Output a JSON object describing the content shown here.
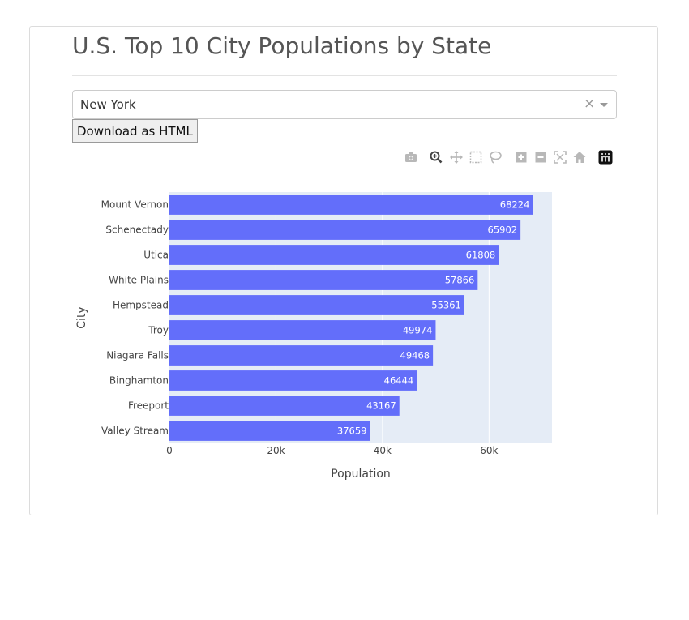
{
  "page": {
    "title": "U.S. Top 10 City Populations by State"
  },
  "dropdown": {
    "selected": "New York",
    "clear_symbol": "×"
  },
  "download_button": {
    "label": "Download as HTML"
  },
  "modebar": {
    "icons": [
      "camera-icon",
      "zoom-icon",
      "pan-icon",
      "box-select-icon",
      "lasso-select-icon",
      "zoom-in-icon",
      "zoom-out-icon",
      "autoscale-icon",
      "reset-axes-icon",
      "plotly-logo-icon"
    ]
  },
  "colors": {
    "bar": "#636efa",
    "plot_bg": "#e5ecf6",
    "grid": "#ffffff"
  },
  "chart_data": {
    "type": "bar",
    "orientation": "horizontal",
    "categories": [
      "Mount Vernon",
      "Schenectady",
      "Utica",
      "White Plains",
      "Hempstead",
      "Troy",
      "Niagara Falls",
      "Binghamton",
      "Freeport",
      "Valley Stream"
    ],
    "values": [
      68224,
      65902,
      61808,
      57866,
      55361,
      49974,
      49468,
      46444,
      43167,
      37659
    ],
    "xlabel": "Population",
    "ylabel": "City",
    "xlim": [
      0,
      71815
    ],
    "xticks": [
      0,
      20000,
      40000,
      60000
    ],
    "xtick_labels": [
      "0",
      "20k",
      "40k",
      "60k"
    ],
    "grid": true,
    "data_labels": "inside-end"
  }
}
